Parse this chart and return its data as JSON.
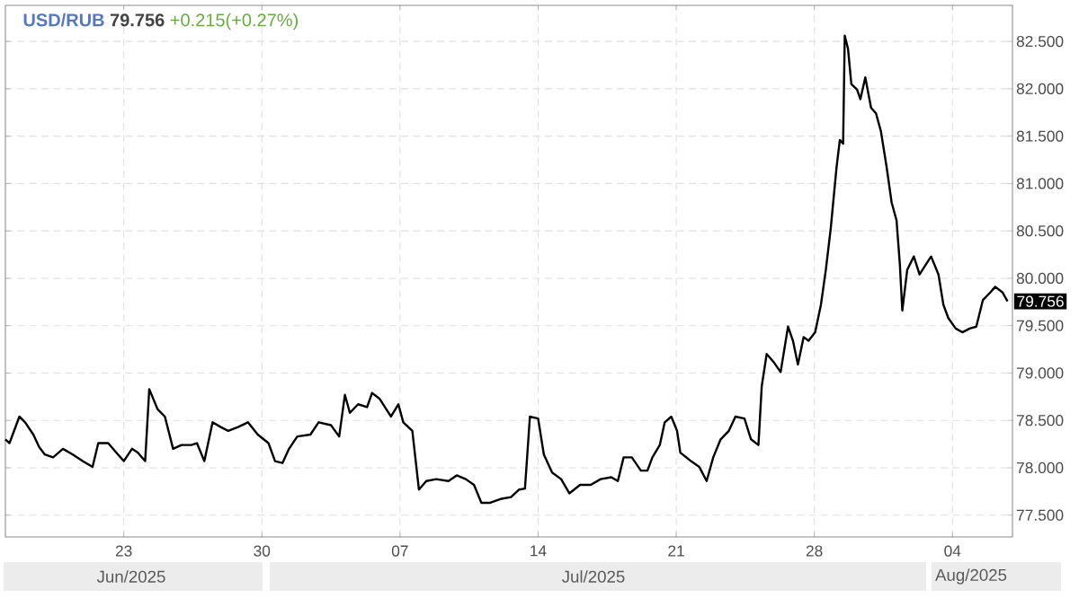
{
  "chart_data": {
    "type": "line",
    "title": "USD/RUB",
    "subtitle": "79.756",
    "color": "#000000",
    "annotations": [
      "+0.215(+0.27%)",
      "Jun/2025",
      "Jul/2025",
      "Aug/2025",
      {
        "text": "79.756",
        "x": "2025-08-07T01:00",
        "y": 79.756
      }
    ],
    "x": [
      "2025-06-17T00:00",
      "2025-06-17T05:00",
      "2025-06-17T17:00",
      "2025-06-18T00:00",
      "2025-06-18T10:00",
      "2025-06-18T17:00",
      "2025-06-19T00:00",
      "2025-06-19T10:00",
      "2025-06-19T22:00",
      "2025-06-20T10:00",
      "2025-06-20T22:00",
      "2025-06-21T10:00",
      "2025-06-21T17:00",
      "2025-06-22T05:00",
      "2025-06-22T17:00",
      "2025-06-23T00:00",
      "2025-06-23T10:00",
      "2025-06-23T17:00",
      "2025-06-24T02:00",
      "2025-06-24T07:00",
      "2025-06-24T17:00",
      "2025-06-25T02:00",
      "2025-06-25T12:00",
      "2025-06-25T22:00",
      "2025-06-26T10:00",
      "2025-06-26T17:00",
      "2025-06-27T02:00",
      "2025-06-27T12:00",
      "2025-06-27T22:00",
      "2025-06-28T07:00",
      "2025-06-28T19:00",
      "2025-06-29T07:00",
      "2025-06-29T19:00",
      "2025-06-30T08:00",
      "2025-06-30T16:00",
      "2025-07-01T01:00",
      "2025-07-01T09:00",
      "2025-07-01T19:00",
      "2025-07-02T11:00",
      "2025-07-02T21:00",
      "2025-07-03T12:00",
      "2025-07-03T22:00",
      "2025-07-04T05:00",
      "2025-07-04T11:00",
      "2025-07-04T21:00",
      "2025-07-05T08:00",
      "2025-07-05T14:00",
      "2025-07-05T23:00",
      "2025-07-06T13:00",
      "2025-07-06T22:00",
      "2025-07-07T04:00",
      "2025-07-07T15:00",
      "2025-07-07T23:00",
      "2025-07-08T08:00",
      "2025-07-08T20:00",
      "2025-07-09T11:00",
      "2025-07-09T21:00",
      "2025-07-10T08:00",
      "2025-07-10T18:00",
      "2025-07-11T03:00",
      "2025-07-11T13:00",
      "2025-07-12T02:00",
      "2025-07-12T15:00",
      "2025-07-13T01:00",
      "2025-07-13T08:00",
      "2025-07-13T14:00",
      "2025-07-14T00:00",
      "2025-07-14T07:00",
      "2025-07-14T17:00",
      "2025-07-15T04:00",
      "2025-07-15T14:00",
      "2025-07-16T03:00",
      "2025-07-16T16:00",
      "2025-07-17T04:00",
      "2025-07-17T17:00",
      "2025-07-18T01:00",
      "2025-07-18T08:00",
      "2025-07-18T18:00",
      "2025-07-19T05:00",
      "2025-07-19T13:00",
      "2025-07-19T19:00",
      "2025-07-20T04:00",
      "2025-07-20T10:00",
      "2025-07-20T18:00",
      "2025-07-21T01:00",
      "2025-07-21T05:00",
      "2025-07-21T18:00",
      "2025-07-22T04:00",
      "2025-07-22T13:00",
      "2025-07-22T21:00",
      "2025-07-23T06:00",
      "2025-07-23T16:00",
      "2025-07-24T00:00",
      "2025-07-24T11:00",
      "2025-07-24T19:00",
      "2025-07-25T04:00",
      "2025-07-25T08:00",
      "2025-07-25T14:00",
      "2025-07-25T23:00",
      "2025-07-26T07:00",
      "2025-07-26T16:00",
      "2025-07-26T22:00",
      "2025-07-27T04:00",
      "2025-07-27T11:00",
      "2025-07-27T17:00",
      "2025-07-28T01:00",
      "2025-07-28T08:00",
      "2025-07-28T14:00",
      "2025-07-28T20:00",
      "2025-07-29T03:00",
      "2025-07-29T07:00",
      "2025-07-29T11:00",
      "2025-07-29T13:00",
      "2025-07-29T17:00",
      "2025-07-29T21:00",
      "2025-07-30T04:00",
      "2025-07-30T08:00",
      "2025-07-30T14:00",
      "2025-07-30T21:00",
      "2025-07-31T03:00",
      "2025-07-31T09:00",
      "2025-07-31T16:00",
      "2025-07-31T22:00",
      "2025-08-01T04:00",
      "2025-08-01T08:00",
      "2025-08-01T11:00",
      "2025-08-01T17:00",
      "2025-08-02T01:00",
      "2025-08-02T08:00",
      "2025-08-02T16:00",
      "2025-08-02T22:00",
      "2025-08-03T07:00",
      "2025-08-03T13:00",
      "2025-08-03T19:00",
      "2025-08-04T04:00",
      "2025-08-04T12:00",
      "2025-08-04T21:00",
      "2025-08-05T05:00",
      "2025-08-05T13:00",
      "2025-08-05T22:00",
      "2025-08-06T04:00",
      "2025-08-06T13:00",
      "2025-08-06T19:00"
    ],
    "values": [
      78.3,
      78.26,
      78.54,
      78.48,
      78.35,
      78.22,
      78.14,
      78.11,
      78.2,
      78.14,
      78.07,
      78.01,
      78.26,
      78.26,
      78.14,
      78.07,
      78.2,
      78.16,
      78.07,
      78.83,
      78.62,
      78.54,
      78.2,
      78.24,
      78.24,
      78.26,
      78.07,
      78.48,
      78.43,
      78.39,
      78.43,
      78.48,
      78.35,
      78.26,
      78.07,
      78.05,
      78.2,
      78.33,
      78.35,
      78.48,
      78.45,
      78.33,
      78.77,
      78.58,
      78.67,
      78.64,
      78.79,
      78.73,
      78.54,
      78.67,
      78.48,
      78.39,
      77.77,
      77.86,
      77.88,
      77.86,
      77.92,
      77.88,
      77.82,
      77.63,
      77.63,
      77.67,
      77.69,
      77.77,
      77.78,
      78.54,
      78.52,
      78.14,
      77.95,
      77.88,
      77.73,
      77.82,
      77.82,
      77.88,
      77.9,
      77.86,
      78.11,
      78.11,
      77.97,
      77.97,
      78.11,
      78.24,
      78.48,
      78.54,
      78.39,
      78.16,
      78.07,
      78.01,
      77.86,
      78.11,
      78.3,
      78.39,
      78.54,
      78.52,
      78.3,
      78.24,
      78.86,
      79.2,
      79.11,
      79.01,
      79.49,
      79.34,
      79.09,
      79.38,
      79.34,
      79.43,
      79.72,
      80.09,
      80.53,
      81.17,
      81.46,
      81.42,
      82.56,
      82.42,
      82.05,
      81.99,
      81.89,
      82.12,
      81.8,
      81.74,
      81.55,
      81.17,
      80.8,
      80.61,
      80.15,
      79.66,
      80.09,
      80.23,
      80.04,
      80.15,
      80.23,
      80.04,
      79.72,
      79.58,
      79.47,
      79.43,
      79.47,
      79.49,
      79.77,
      79.85,
      79.91,
      79.85,
      79.756
    ],
    "xlim": [
      "2025-06-17T00:00",
      "2025-08-07T01:00"
    ],
    "ylim": [
      77.27,
      82.88
    ],
    "xticks": [
      {
        "value": "2025-06-23",
        "label": "23"
      },
      {
        "value": "2025-06-30",
        "label": "30"
      },
      {
        "value": "2025-07-07",
        "label": "07"
      },
      {
        "value": "2025-07-14",
        "label": "14"
      },
      {
        "value": "2025-07-21",
        "label": "21"
      },
      {
        "value": "2025-07-28",
        "label": "28"
      },
      {
        "value": "2025-08-04",
        "label": "04"
      }
    ],
    "yticks": [
      {
        "value": 77.5,
        "label": "77.500"
      },
      {
        "value": 78,
        "label": "78.000"
      },
      {
        "value": 78.5,
        "label": "78.500"
      },
      {
        "value": 79,
        "label": "79.000"
      },
      {
        "value": 79.5,
        "label": "79.500"
      },
      {
        "value": 80,
        "label": "80.000"
      },
      {
        "value": 80.5,
        "label": "80.500"
      },
      {
        "value": 81,
        "label": "81.000"
      },
      {
        "value": 81.5,
        "label": "81.500"
      },
      {
        "value": 82,
        "label": "82.000"
      },
      {
        "value": 82.5,
        "label": "82.500"
      }
    ],
    "grid": true
  }
}
